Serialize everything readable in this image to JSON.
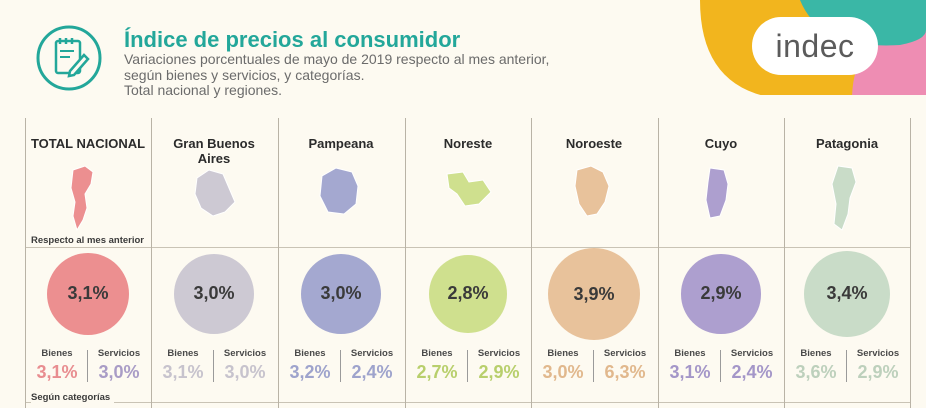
{
  "header": {
    "title": "Índice de precios al consumidor",
    "subtitle_lines": [
      "Variaciones porcentuales de mayo de 2019 respecto al mes anterior,",
      "según bienes y servicios, y categorías.",
      "Total nacional y regiones."
    ],
    "logo": "indec"
  },
  "labels": {
    "respecto": "Respecto al mes anterior",
    "categorias": "Según categorías",
    "bienes": "Bienes",
    "servicios": "Servicios"
  },
  "colors": {
    "title": "#23a79a",
    "deco_yellow": "#f2b51e",
    "deco_pink": "#ee8db3",
    "deco_green": "#3ab7a6"
  },
  "chart_data": {
    "type": "bubble",
    "title": "Índice de precios al consumidor",
    "unit": "%",
    "regions": [
      {
        "name": "TOTAL NACIONAL",
        "value": 3.1,
        "value_label": "3,1%",
        "bienes": 3.1,
        "bienes_label": "3,1%",
        "servicios": 3.0,
        "servicios_label": "3,0%",
        "color": "#ec8f90",
        "bienes_color": "#e88d90",
        "servicios_color": "#a99cc6"
      },
      {
        "name": "Gran Buenos Aires",
        "value": 3.0,
        "value_label": "3,0%",
        "bienes": 3.1,
        "bienes_label": "3,1%",
        "servicios": 3.0,
        "servicios_label": "3,0%",
        "color": "#cdc9d3",
        "bienes_color": "#c7c3cd",
        "servicios_color": "#c7c3cd"
      },
      {
        "name": "Pampeana",
        "value": 3.0,
        "value_label": "3,0%",
        "bienes": 3.2,
        "bienes_label": "3,2%",
        "servicios": 2.4,
        "servicios_label": "2,4%",
        "color": "#a4a8d0",
        "bienes_color": "#9ea3cc",
        "servicios_color": "#9ea3cc"
      },
      {
        "name": "Noreste",
        "value": 2.8,
        "value_label": "2,8%",
        "bienes": 2.7,
        "bienes_label": "2,7%",
        "servicios": 2.9,
        "servicios_label": "2,9%",
        "color": "#cfe08e",
        "bienes_color": "#b8cf6c",
        "servicios_color": "#b8cf6c"
      },
      {
        "name": "Noroeste",
        "value": 3.9,
        "value_label": "3,9%",
        "bienes": 3.0,
        "bienes_label": "3,0%",
        "servicios": 6.3,
        "servicios_label": "6,3%",
        "color": "#e8c29b",
        "bienes_color": "#e1b88d",
        "servicios_color": "#e1b88d"
      },
      {
        "name": "Cuyo",
        "value": 2.9,
        "value_label": "2,9%",
        "bienes": 3.1,
        "bienes_label": "3,1%",
        "servicios": 2.4,
        "servicios_label": "2,4%",
        "color": "#ad9fcf",
        "bienes_color": "#a496c8",
        "servicios_color": "#a496c8"
      },
      {
        "name": "Patagonia",
        "value": 3.4,
        "value_label": "3,4%",
        "bienes": 3.6,
        "bienes_label": "3,6%",
        "servicios": 2.9,
        "servicios_label": "2,9%",
        "color": "#c9dcc8",
        "bienes_color": "#bdd0bc",
        "servicios_color": "#bdd0bc"
      }
    ]
  }
}
